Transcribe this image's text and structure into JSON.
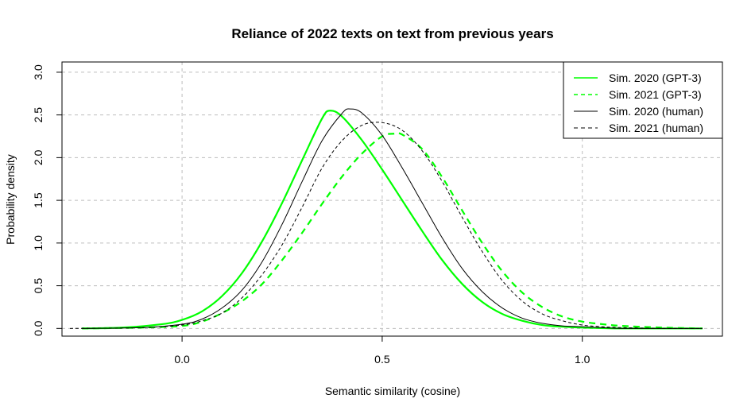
{
  "chart_data": {
    "type": "line",
    "title": "Reliance of 2022 texts on text from previous years",
    "xlabel": "Semantic similarity (cosine)",
    "ylabel": "Probability density",
    "xlim": [
      -0.3,
      1.35
    ],
    "ylim": [
      -0.09,
      3.12
    ],
    "x_ticks": [
      0.0,
      0.5,
      1.0
    ],
    "x_tick_labels": [
      "0.0",
      "0.5",
      "1.0"
    ],
    "y_ticks": [
      0.0,
      0.5,
      1.0,
      1.5,
      2.0,
      2.5,
      3.0
    ],
    "y_tick_labels": [
      "0.0",
      "0.5",
      "1.0",
      "1.5",
      "2.0",
      "2.5",
      "3.0"
    ],
    "grid": true,
    "legend_position": "top-right",
    "series": [
      {
        "name": "Sim. 2020 (GPT-3)",
        "color": "#00ff00",
        "dash": "solid",
        "x": [
          -0.25,
          -0.15,
          -0.05,
          0.0,
          0.05,
          0.1,
          0.15,
          0.2,
          0.25,
          0.3,
          0.35,
          0.37,
          0.4,
          0.45,
          0.5,
          0.55,
          0.6,
          0.65,
          0.7,
          0.75,
          0.8,
          0.85,
          0.9,
          0.95,
          1.0,
          1.1,
          1.2,
          1.3
        ],
        "y": [
          0.0,
          0.01,
          0.05,
          0.1,
          0.2,
          0.38,
          0.65,
          1.02,
          1.47,
          1.97,
          2.46,
          2.55,
          2.48,
          2.2,
          1.86,
          1.5,
          1.14,
          0.8,
          0.52,
          0.31,
          0.17,
          0.09,
          0.04,
          0.02,
          0.01,
          0.0,
          0.0,
          0.0
        ]
      },
      {
        "name": "Sim. 2021 (GPT-3)",
        "color": "#00ff00",
        "dash": "dashed",
        "x": [
          -0.25,
          -0.1,
          0.0,
          0.05,
          0.1,
          0.15,
          0.2,
          0.25,
          0.3,
          0.35,
          0.4,
          0.45,
          0.5,
          0.53,
          0.55,
          0.6,
          0.65,
          0.7,
          0.75,
          0.8,
          0.85,
          0.9,
          0.95,
          1.0,
          1.05,
          1.1,
          1.2,
          1.3
        ],
        "y": [
          0.0,
          0.01,
          0.03,
          0.08,
          0.18,
          0.32,
          0.52,
          0.8,
          1.12,
          1.46,
          1.78,
          2.05,
          2.25,
          2.28,
          2.27,
          2.1,
          1.77,
          1.38,
          1.0,
          0.67,
          0.42,
          0.25,
          0.14,
          0.08,
          0.05,
          0.03,
          0.01,
          0.0
        ]
      },
      {
        "name": "Sim. 2020 (human)",
        "color": "#000000",
        "dash": "solid",
        "x": [
          -0.25,
          -0.1,
          0.0,
          0.05,
          0.1,
          0.15,
          0.2,
          0.25,
          0.3,
          0.35,
          0.4,
          0.42,
          0.45,
          0.5,
          0.55,
          0.6,
          0.65,
          0.7,
          0.75,
          0.8,
          0.85,
          0.9,
          0.95,
          1.0,
          1.1,
          1.2,
          1.3
        ],
        "y": [
          0.0,
          0.01,
          0.05,
          0.11,
          0.24,
          0.45,
          0.78,
          1.22,
          1.72,
          2.2,
          2.52,
          2.57,
          2.52,
          2.26,
          1.88,
          1.47,
          1.06,
          0.7,
          0.43,
          0.24,
          0.12,
          0.06,
          0.03,
          0.02,
          0.0,
          0.0,
          0.0
        ]
      },
      {
        "name": "Sim. 2021 (human)",
        "color": "#000000",
        "dash": "dashed",
        "x": [
          -0.28,
          -0.1,
          0.0,
          0.05,
          0.1,
          0.15,
          0.2,
          0.25,
          0.3,
          0.35,
          0.4,
          0.45,
          0.5,
          0.55,
          0.6,
          0.65,
          0.7,
          0.75,
          0.8,
          0.85,
          0.9,
          0.95,
          1.0,
          1.05,
          1.1,
          1.2,
          1.3
        ],
        "y": [
          0.0,
          0.01,
          0.04,
          0.09,
          0.18,
          0.36,
          0.63,
          0.98,
          1.42,
          1.88,
          2.2,
          2.38,
          2.41,
          2.32,
          2.08,
          1.72,
          1.3,
          0.9,
          0.56,
          0.32,
          0.17,
          0.09,
          0.04,
          0.02,
          0.01,
          0.0,
          0.0
        ]
      }
    ]
  }
}
